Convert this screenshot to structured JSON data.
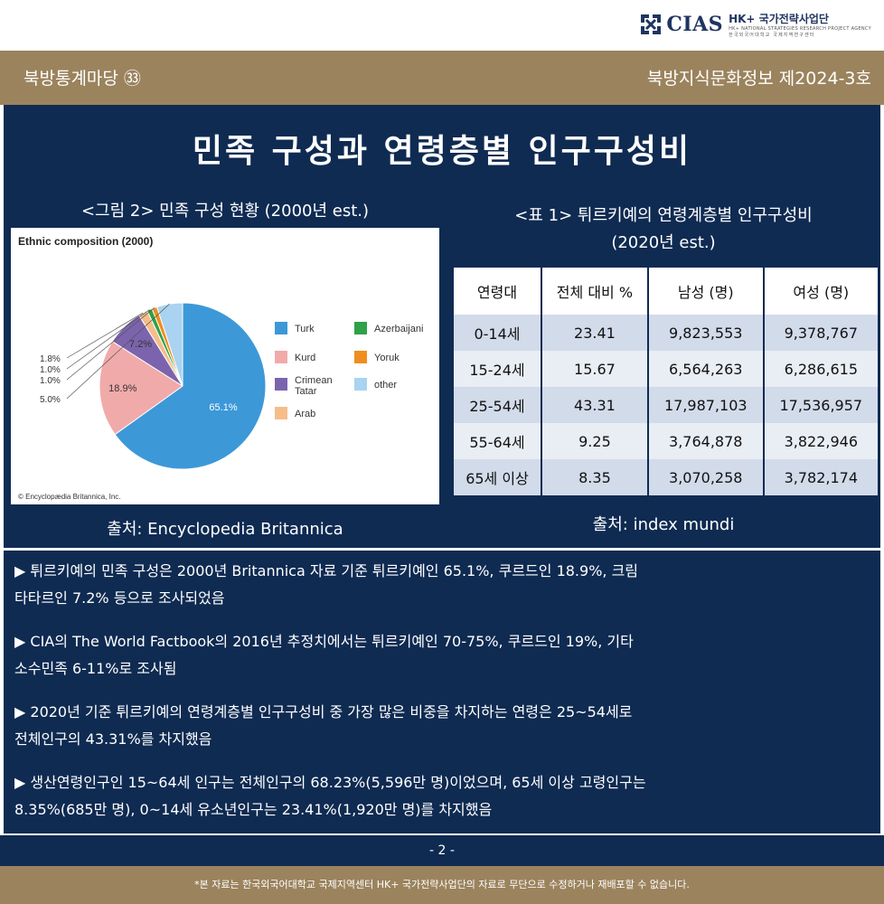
{
  "logo": {
    "name": "CIAS",
    "org": "HK+ 국가전략사업단",
    "sub_en": "HK+ NATIONAL STRATEGIES RESEARCH PROJECT AGENCY",
    "sub_ko": "한국외국어대학교 국제지역연구센터"
  },
  "header": {
    "series": "북방통계마당 ㉝",
    "issue": "북방지식문화정보 제2024-3호"
  },
  "title": "민족 구성과 연령층별 인구구성비",
  "figure": {
    "caption": "<그림 2> 민족 구성 현황 (2000년 est.)",
    "source": "출처: Encyclopedia Britannica",
    "image_title": "Ethnic composition (2000)",
    "copyright": "© Encyclopædia Britannica, Inc."
  },
  "table": {
    "caption_line1": "<표 1> 튀르키예의 연령계층별 인구구성비",
    "caption_line2": "(2020년 est.)",
    "source": "출처: index mundi",
    "headers": [
      "연령대",
      "전체 대비 %",
      "남성 (명)",
      "여성 (명)"
    ],
    "rows": [
      [
        "0-14세",
        "23.41",
        "9,823,553",
        "9,378,767"
      ],
      [
        "15-24세",
        "15.67",
        "6,564,263",
        "6,286,615"
      ],
      [
        "25-54세",
        "43.31",
        "17,987,103",
        "17,536,957"
      ],
      [
        "55-64세",
        "9.25",
        "3,764,878",
        "3,822,946"
      ],
      [
        "65세 이상",
        "8.35",
        "3,070,258",
        "3,782,174"
      ]
    ]
  },
  "chart_data": {
    "type": "pie",
    "title": "Ethnic composition (2000)",
    "legend_position": "right",
    "slices": [
      {
        "name": "Turk",
        "value": 65.1,
        "label": "65.1%",
        "color": "#3d98d8"
      },
      {
        "name": "Kurd",
        "value": 18.9,
        "label": "18.9%",
        "color": "#f1aaaa"
      },
      {
        "name": "Crimean Tatar",
        "value": 7.2,
        "label": "7.2%",
        "color": "#7b64ad"
      },
      {
        "name": "Arab",
        "value": 1.8,
        "label": "1.8%",
        "color": "#f6bd8a"
      },
      {
        "name": "Azerbaijani",
        "value": 1.0,
        "label": "1.0%",
        "color": "#2fa148"
      },
      {
        "name": "Yoruk",
        "value": 1.0,
        "label": "1.0%",
        "color": "#f18d1f"
      },
      {
        "name": "other",
        "value": 5.0,
        "label": "5.0%",
        "color": "#a9d3f0"
      }
    ],
    "legend": [
      "Turk",
      "Azerbaijani",
      "Kurd",
      "Yoruk",
      "Crimean Tatar",
      "other",
      "Arab"
    ]
  },
  "paragraphs": [
    {
      "line1": "▶ 튀르키예의 민족 구성은 2000년 Britannica 자료 기준 튀르키예인 65.1%, 쿠르드인 18.9%, 크림",
      "line2": "타타르인 7.2% 등으로 조사되었음"
    },
    {
      "line1": "▶ CIA의 The World Factbook의 2016년 추정치에서는 튀르키예인 70-75%, 쿠르드인 19%, 기타",
      "line2": "소수민족 6-11%로 조사됨"
    },
    {
      "line1": "▶ 2020년 기준 튀르키예의 연령계층별 인구구성비 중 가장 많은 비중을 차지하는 연령은 25~54세로",
      "line2": "전체인구의 43.31%를 차지했음"
    },
    {
      "line1": "▶ 생산연령인구인 15~64세 인구는 전체인구의 68.23%(5,596만 명)이었으며, 65세 이상 고령인구는",
      "line2": "8.35%(685만 명), 0~14세 유소년인구는 23.41%(1,920만 명)를 차지했음"
    }
  ],
  "page_number": "- 2 -",
  "footer": "*본 자료는 한국외국어대학교 국제지역센터 HK+ 국가전략사업단의 자료로 무단으로 수정하거나 재배포할 수 없습니다."
}
